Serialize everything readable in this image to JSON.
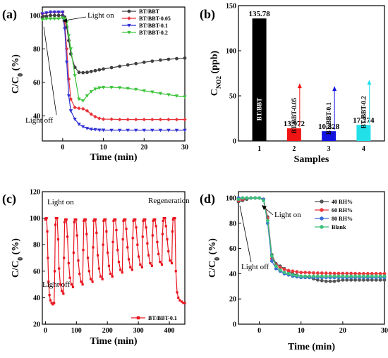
{
  "chart_data": [
    {
      "panel_label": "(a)",
      "type": "line",
      "xlabel": "Time (min)",
      "ylabel": "C/C0 (%)",
      "xlim": [
        -5,
        30
      ],
      "ylim": [
        25,
        105
      ],
      "xticks": [
        0,
        10,
        20,
        30
      ],
      "yticks": [
        40,
        60,
        80,
        100
      ],
      "legend_position": "top-right",
      "annotations": [
        "Light on",
        "Light off"
      ],
      "series": [
        {
          "name": "BT/BBT",
          "color": "#404040",
          "marker": "circle",
          "x": [
            -5,
            -4,
            -3,
            -2,
            -1,
            0,
            0.5,
            1,
            1.5,
            2,
            3,
            4,
            5,
            6,
            7,
            8,
            9,
            10,
            12,
            14,
            16,
            18,
            20,
            22,
            24,
            26,
            28,
            30
          ],
          "y": [
            99,
            99.5,
            100,
            100,
            100,
            100,
            99,
            93,
            85,
            77,
            69,
            66,
            65.8,
            66,
            66.5,
            67,
            67.5,
            68,
            68.8,
            69.6,
            70.4,
            71.2,
            72,
            72.7,
            73.3,
            73.8,
            74.2,
            74.5
          ]
        },
        {
          "name": "BT/BBT-0.05",
          "color": "#e8333a",
          "marker": "diamond",
          "x": [
            -5,
            -4,
            -3,
            -2,
            -1,
            0,
            0.5,
            1,
            1.5,
            2,
            3,
            4,
            5,
            6,
            7,
            8,
            9,
            10,
            12,
            14,
            16,
            18,
            20,
            22,
            24,
            26,
            28,
            30
          ],
          "y": [
            101,
            101.5,
            102,
            102,
            102,
            102,
            96,
            80,
            62,
            50,
            45,
            44.5,
            44.2,
            43,
            41,
            39.5,
            38.5,
            38,
            38,
            37.8,
            37.8,
            37.8,
            37.8,
            37.8,
            37.8,
            37.8,
            37.8,
            37.8
          ]
        },
        {
          "name": "BT/BBT-0.1",
          "color": "#2f2fd6",
          "marker": "triangle-down",
          "x": [
            -5,
            -4,
            -3,
            -2,
            -1,
            0,
            0.5,
            1,
            1.5,
            2,
            3,
            4,
            5,
            6,
            7,
            8,
            9,
            10,
            12,
            14,
            16,
            18,
            20,
            22,
            24,
            26,
            28,
            30
          ],
          "y": [
            101,
            101.5,
            102,
            102,
            102,
            102,
            92,
            72,
            52,
            43,
            38,
            35,
            33.5,
            32.5,
            32,
            31.8,
            31.5,
            31.5,
            31.4,
            31.4,
            31.4,
            31.4,
            31.4,
            31.4,
            31.4,
            31.4,
            31.4,
            31.4
          ]
        },
        {
          "name": "BT/BBT-0.2",
          "color": "#3cc43c",
          "marker": "triangle-down",
          "x": [
            -5,
            -4,
            -3,
            -2,
            -1,
            0,
            0.5,
            1,
            1.5,
            2,
            3,
            4,
            5,
            6,
            7,
            8,
            9,
            10,
            12,
            14,
            16,
            18,
            20,
            22,
            24,
            26,
            28,
            30
          ],
          "y": [
            97.5,
            98,
            98,
            98,
            98,
            98.5,
            98,
            96,
            88,
            80,
            64,
            50,
            49,
            52,
            54.5,
            56,
            56.7,
            57,
            57,
            56.8,
            56.4,
            55.8,
            55,
            54.2,
            53.4,
            52.6,
            51.9,
            51.3
          ]
        }
      ]
    },
    {
      "panel_label": "(b)",
      "type": "bar",
      "xlabel": "Samples",
      "ylabel": "C",
      "ylabel_sub": "NO2",
      "ylabel_unit": "(ppb)",
      "ylim": [
        0,
        150
      ],
      "yticks": [
        0,
        50,
        100,
        150
      ],
      "categories": [
        "1",
        "2",
        "3",
        "4"
      ],
      "bar_names": [
        "BT/BBT",
        "BT/BBT-0.05",
        "BT/BBT-0.1",
        "BT/BBT-0.2"
      ],
      "values": [
        135.78,
        13.972,
        10.828,
        17.774
      ],
      "value_labels": [
        "135.78",
        "13.972",
        "10.828",
        "17.774"
      ],
      "colors": [
        "#000000",
        "#f01414",
        "#1414e0",
        "#22e0e8"
      ]
    },
    {
      "panel_label": "(c)",
      "type": "line",
      "xlabel": "Time (min)",
      "ylabel": "C/C0 (%)",
      "xlim": [
        -10,
        450
      ],
      "ylim": [
        20,
        120
      ],
      "xticks": [
        0,
        100,
        200,
        300,
        400
      ],
      "yticks": [
        20,
        40,
        60,
        80,
        100,
        120
      ],
      "legend_position": "bottom-right",
      "annotations": [
        "Light on",
        "Light off",
        "Regeneration"
      ],
      "series": [
        {
          "name": "BT/BBT-0.1",
          "color": "#e8141e",
          "marker": "square",
          "x": [
            0,
            2,
            4,
            6,
            8,
            10,
            13,
            16,
            20,
            24,
            28,
            30,
            32,
            34,
            36,
            38,
            41,
            44,
            48,
            53,
            58,
            60,
            62,
            64,
            66,
            68,
            71,
            75,
            79,
            84,
            89,
            91,
            93,
            95,
            97,
            99,
            102,
            106,
            110,
            115,
            120,
            122,
            124,
            126,
            128,
            130,
            133,
            137,
            141,
            146,
            152,
            154,
            156,
            158,
            160,
            162,
            165,
            169,
            173,
            178,
            184,
            186,
            188,
            190,
            192,
            194,
            197,
            201,
            205,
            210,
            216,
            218,
            220,
            222,
            224,
            226,
            229,
            233,
            237,
            242,
            248,
            250,
            252,
            254,
            256,
            258,
            261,
            265,
            269,
            274,
            280,
            282,
            284,
            286,
            288,
            290,
            293,
            297,
            301,
            306,
            312,
            314,
            316,
            318,
            320,
            322,
            325,
            329,
            333,
            338,
            344,
            346,
            348,
            350,
            352,
            354,
            357,
            361,
            365,
            370,
            376,
            378,
            380,
            382,
            384,
            386,
            389,
            393,
            397,
            402,
            408,
            410,
            412,
            414,
            416,
            418,
            421,
            425,
            429,
            434,
            440,
            445,
            450
          ],
          "y": [
            99,
            100,
            100,
            90,
            70,
            52,
            42,
            38,
            36,
            35,
            36,
            60,
            95,
            100,
            100,
            100,
            84,
            62,
            50,
            45,
            43,
            70,
            97,
            99,
            99,
            99,
            86,
            66,
            55,
            50,
            48,
            74,
            97,
            99,
            99,
            99,
            87,
            68,
            58,
            52,
            50,
            76,
            98,
            99,
            99,
            99,
            88,
            70,
            60,
            54,
            52,
            78,
            98,
            99,
            99,
            99,
            89,
            72,
            62,
            56,
            54,
            80,
            98,
            99,
            99,
            99,
            90,
            74,
            64,
            58,
            56,
            82,
            98,
            99,
            99,
            99,
            91,
            76,
            67,
            61,
            59,
            84,
            98,
            99,
            99,
            99,
            92,
            78,
            69,
            63,
            61,
            85,
            98,
            99,
            99,
            99,
            93,
            80,
            71,
            65,
            63,
            86,
            98,
            99,
            99,
            99,
            93,
            81,
            72,
            66,
            64,
            87,
            98,
            99,
            99,
            99,
            94,
            82,
            73,
            67,
            65,
            88,
            98,
            100,
            100,
            100,
            94,
            84,
            75,
            68,
            66,
            90,
            99,
            100,
            100,
            100,
            60,
            44,
            40,
            38,
            37,
            36,
            36
          ]
        }
      ]
    },
    {
      "panel_label": "(d)",
      "type": "line",
      "xlabel": "Time (min)",
      "ylabel": "C/C0 (%)",
      "xlim": [
        -5,
        30
      ],
      "ylim": [
        0,
        105
      ],
      "xticks": [
        0,
        10,
        20,
        30
      ],
      "yticks": [
        0,
        20,
        40,
        60,
        80,
        100
      ],
      "legend_position": "top-right",
      "annotations": [
        "Light on",
        "Light off"
      ],
      "series": [
        {
          "name": "40 RH%",
          "color": "#555555",
          "marker": "circle",
          "x": [
            -5,
            -4,
            -3,
            -2,
            -1,
            0,
            1,
            2,
            3,
            4,
            5,
            6,
            7,
            8,
            9,
            10,
            11,
            12,
            13,
            14,
            15,
            16,
            17,
            18,
            19,
            20,
            21,
            22,
            23,
            24,
            25,
            26,
            27,
            28,
            29,
            30
          ],
          "y": [
            97,
            98,
            99,
            100,
            100,
            100,
            99,
            85,
            55,
            48,
            46,
            44,
            42,
            40,
            39,
            38,
            38,
            37,
            36,
            35,
            34.5,
            34,
            34,
            34,
            34.5,
            35,
            35,
            35,
            35,
            35,
            35,
            35,
            35,
            35,
            35,
            35
          ]
        },
        {
          "name": "60 RH%",
          "color": "#e8363c",
          "marker": "circle",
          "x": [
            -5,
            -4,
            -3,
            -2,
            -1,
            0,
            1,
            2,
            3,
            4,
            5,
            6,
            7,
            8,
            9,
            10,
            11,
            12,
            13,
            14,
            15,
            16,
            17,
            18,
            19,
            20,
            21,
            22,
            23,
            24,
            25,
            26,
            27,
            28,
            29,
            30
          ],
          "y": [
            98,
            99,
            100,
            100,
            100,
            100,
            99,
            84,
            52,
            47,
            45,
            43.5,
            42.5,
            42,
            41.5,
            41,
            41,
            40.8,
            40.6,
            40.5,
            40.5,
            40.4,
            40.3,
            40.2,
            40.2,
            40.2,
            40.2,
            40.2,
            40.1,
            40,
            40,
            40,
            40,
            40,
            40,
            40
          ]
        },
        {
          "name": "80 RH%",
          "color": "#3a6bd6",
          "marker": "circle",
          "x": [
            -5,
            -4,
            -3,
            -2,
            -1,
            0,
            1,
            2,
            3,
            4,
            5,
            6,
            7,
            8,
            9,
            10,
            11,
            12,
            13,
            14,
            15,
            16,
            17,
            18,
            19,
            20,
            21,
            22,
            23,
            24,
            25,
            26,
            27,
            28,
            29,
            30
          ],
          "y": [
            100,
            100,
            100,
            100,
            100,
            100,
            99,
            80,
            50,
            44,
            42,
            40,
            39,
            38,
            37.5,
            37,
            37,
            37,
            37,
            37,
            37,
            37,
            37,
            37,
            37,
            37,
            37,
            37,
            37,
            37,
            37,
            37,
            37,
            37,
            37,
            37
          ]
        },
        {
          "name": "Blank",
          "color": "#3cbf7a",
          "marker": "circle",
          "x": [
            -5,
            -4,
            -3,
            -2,
            -1,
            0,
            1,
            2,
            3,
            4,
            5,
            6,
            7,
            8,
            9,
            10,
            11,
            12,
            13,
            14,
            15,
            16,
            17,
            18,
            19,
            20,
            21,
            22,
            23,
            24,
            25,
            26,
            27,
            28,
            29,
            30
          ],
          "y": [
            99,
            100,
            100,
            100,
            100,
            100,
            98,
            82,
            54,
            46,
            43,
            41,
            40,
            39,
            38.5,
            38,
            38,
            38,
            38,
            38,
            38,
            38,
            38,
            38,
            38,
            38,
            38,
            38,
            38,
            38,
            38,
            38,
            38,
            38,
            38,
            38
          ]
        }
      ]
    }
  ]
}
